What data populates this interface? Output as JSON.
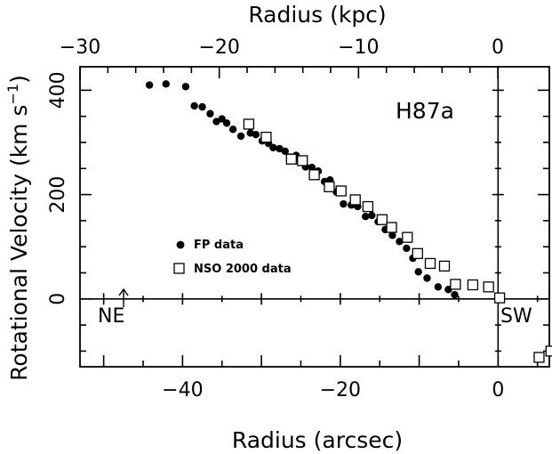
{
  "chart_data": {
    "type": "scatter",
    "title": "",
    "xlabel": "Radius (arcsec)",
    "ylabel": "Rotational Velocity (km s",
    "ylabel_sup": "−1",
    "ylabel_close": ")",
    "x2label": "Radius (kpc)",
    "xlim": [
      -53,
      6.5
    ],
    "ylim": [
      -130,
      445
    ],
    "x2lim": [
      -30,
      3.7
    ],
    "x_ticks": [
      -40,
      -20,
      0
    ],
    "x_tick_labels": [
      "−40",
      "−20",
      "0"
    ],
    "y_ticks": [
      0,
      200,
      400
    ],
    "y_tick_labels": [
      "0",
      "200",
      "400"
    ],
    "x2_ticks": [
      -30,
      -20,
      -10,
      0
    ],
    "x2_tick_labels": [
      "−30",
      "−20",
      "−10",
      "0"
    ],
    "grid": false,
    "panel_label": "H87a",
    "left_annotation": "NE",
    "right_annotation": "SW",
    "legend_position": "middle-left",
    "series": [
      {
        "name": "FP data",
        "marker": "filled-circle",
        "color": "#000000",
        "points": [
          [
            -44.2,
            410
          ],
          [
            -42.1,
            412
          ],
          [
            -39.6,
            407
          ],
          [
            -38.5,
            370
          ],
          [
            -37.5,
            368
          ],
          [
            -36.5,
            355
          ],
          [
            -35.7,
            340
          ],
          [
            -35.0,
            345
          ],
          [
            -34.4,
            337
          ],
          [
            -33.6,
            325
          ],
          [
            -32.6,
            312
          ],
          [
            -31.4,
            318
          ],
          [
            -30.7,
            315
          ],
          [
            -29.9,
            303
          ],
          [
            -29.1,
            298
          ],
          [
            -28.5,
            290
          ],
          [
            -27.7,
            288
          ],
          [
            -27.0,
            283
          ],
          [
            -26.4,
            272
          ],
          [
            -25.6,
            275
          ],
          [
            -25.1,
            265
          ],
          [
            -24.4,
            253
          ],
          [
            -23.6,
            252
          ],
          [
            -22.8,
            245
          ],
          [
            -22.0,
            225
          ],
          [
            -21.3,
            228
          ],
          [
            -20.5,
            205
          ],
          [
            -19.6,
            182
          ],
          [
            -18.6,
            180
          ],
          [
            -17.8,
            177
          ],
          [
            -16.8,
            158
          ],
          [
            -16.0,
            160
          ],
          [
            -15.2,
            148
          ],
          [
            -14.3,
            133
          ],
          [
            -13.4,
            122
          ],
          [
            -12.5,
            110
          ],
          [
            -11.6,
            97
          ],
          [
            -10.8,
            78
          ],
          [
            -10.1,
            52
          ],
          [
            -9.0,
            40
          ],
          [
            -7.6,
            23
          ],
          [
            -6.3,
            18
          ],
          [
            -5.5,
            8
          ]
        ]
      },
      {
        "name": "NSO 2000 data",
        "marker": "open-square",
        "color": "#000000",
        "points": [
          [
            -31.6,
            335
          ],
          [
            -29.4,
            310
          ],
          [
            -26.2,
            268
          ],
          [
            -24.8,
            265
          ],
          [
            -23.3,
            238
          ],
          [
            -21.4,
            215
          ],
          [
            -19.9,
            207
          ],
          [
            -18.1,
            190
          ],
          [
            -16.5,
            177
          ],
          [
            -14.7,
            152
          ],
          [
            -13.5,
            137
          ],
          [
            -11.5,
            118
          ],
          [
            -10.2,
            87
          ],
          [
            -8.6,
            68
          ],
          [
            -6.8,
            63
          ],
          [
            -5.4,
            28
          ],
          [
            -3.2,
            27
          ],
          [
            -1.2,
            23
          ],
          [
            0.2,
            2
          ],
          [
            5.2,
            -112
          ],
          [
            6.7,
            -100
          ]
        ]
      }
    ]
  }
}
